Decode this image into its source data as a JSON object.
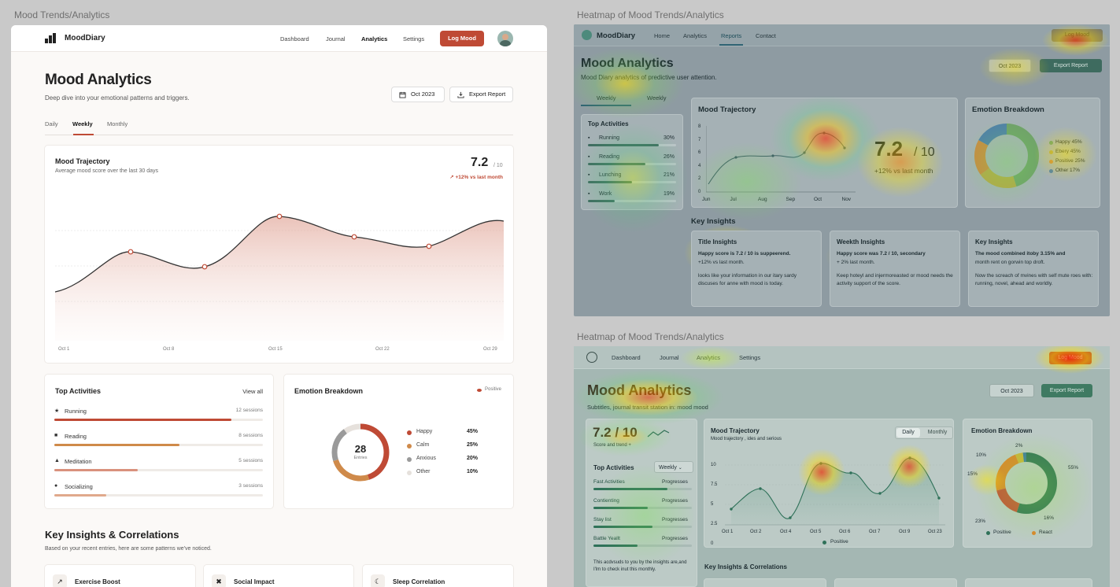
{
  "captions": {
    "left": "Mood Trends/Analytics",
    "right_top": "Heatmap of Mood Trends/Analytics",
    "right_bottom": "Heatmap of Mood Trends/Analytics"
  },
  "main": {
    "brand": "MoodDiary",
    "nav": [
      "Dashboard",
      "Journal",
      "Analytics",
      "Settings"
    ],
    "log_button": "Log Mood",
    "title": "Mood Analytics",
    "subtitle": "Deep dive into your emotional patterns and triggers.",
    "date_button": "Oct 2023",
    "export_button": "Export Report",
    "tabs": [
      "Daily",
      "Weekly",
      "Monthly"
    ],
    "trajectory": {
      "title": "Mood Trajectory",
      "subtitle": "Average mood score over the last 30 days",
      "score": "7.2",
      "score_of": "/ 10",
      "change": "↗ +12% vs last month",
      "x_labels": [
        "Oct 1",
        "Oct 8",
        "Oct 15",
        "Oct 22",
        "Oct 29"
      ]
    },
    "activities": {
      "title": "Top Activities",
      "view_all": "View all",
      "items": [
        {
          "icon": "running-icon",
          "glyph": "★",
          "name": "Running",
          "sessions": "12 sessions",
          "fill": 0.85,
          "color": "#bf4a35"
        },
        {
          "icon": "book-icon",
          "glyph": "■",
          "name": "Reading",
          "sessions": "8 sessions",
          "fill": 0.6,
          "color": "#cf8a4a"
        },
        {
          "icon": "meditation-icon",
          "glyph": "▲",
          "name": "Meditation",
          "sessions": "5 sessions",
          "fill": 0.4,
          "color": "#d9917d"
        },
        {
          "icon": "people-icon",
          "glyph": "●",
          "name": "Socializing",
          "sessions": "3 sessions",
          "fill": 0.25,
          "color": "#e0a98c"
        }
      ]
    },
    "emotions": {
      "title": "Emotion Breakdown",
      "legend_tag": "Positive",
      "center_value": "28",
      "center_label": "Entries",
      "items": [
        {
          "name": "Happy",
          "value": "45%",
          "color": "#bf4a35"
        },
        {
          "name": "Calm",
          "value": "25%",
          "color": "#cf8a4a"
        },
        {
          "name": "Anxious",
          "value": "20%",
          "color": "#9a9a9a"
        },
        {
          "name": "Other",
          "value": "10%",
          "color": "#e6e1dc"
        }
      ]
    },
    "insights": {
      "title": "Key Insights & Correlations",
      "subtitle": "Based on your recent entries, here are some patterns we've noticed.",
      "cards": [
        {
          "icon": "↗",
          "title": "Exercise Boost"
        },
        {
          "icon": "✖",
          "title": "Social Impact"
        },
        {
          "icon": "☾",
          "title": "Sleep Correlation"
        }
      ]
    }
  },
  "heat1": {
    "brand": "MoodDiary",
    "nav": [
      "Home",
      "Analytics",
      "Reports",
      "Contact"
    ],
    "log_button": "Log Mood",
    "title": "Mood Analytics",
    "subtitle": "Mood Diary analytics of predictive user attention.",
    "date_button": "Oct 2023",
    "export_button": "Export Report",
    "tabs": [
      "Weekly",
      "Weekly"
    ],
    "activities_title": "Top Activities",
    "activities": [
      {
        "name": "Running",
        "pct": "30%",
        "fill": 0.8
      },
      {
        "name": "Reading",
        "pct": "26%",
        "fill": 0.65
      },
      {
        "name": "Lunching",
        "pct": "21%",
        "fill": 0.5
      },
      {
        "name": "Work",
        "pct": "19%",
        "fill": 0.3
      }
    ],
    "trajectory_title": "Mood Trajectory",
    "y_labels": [
      "8",
      "7",
      "6",
      "4",
      "2",
      "0"
    ],
    "x_labels": [
      "Jun",
      "Jul",
      "Aug",
      "Sep",
      "Oct",
      "Nov"
    ],
    "score": "7.2",
    "score_of": "/ 10",
    "score_change": "+12% vs last month",
    "emotion_title": "Emotion Breakdown",
    "emotion_legend": [
      "Happy 45%",
      "Ebery 45%",
      "Positive 25%",
      "Other 17%"
    ],
    "insights_title": "Key Insights",
    "insight_cards": [
      {
        "title": "Title Insights",
        "line1": "Happy score is 7.2 / 10 is suppeerend.",
        "line2": "+12% vs last month.",
        "body": "looks like your information in our itary sardy discuses for anne with mood is today."
      },
      {
        "title": "Weekth Insights",
        "line1": "Happy score was 7.2 / 10, secondary",
        "line2": "+ 2% last month.",
        "body": "Keep hoteyl and injermoreasted or mood needs the activity support of the score."
      },
      {
        "title": "Key Insights",
        "line1": "The mood combined itoby 3.15% and",
        "line2": "month rent on gorwin top droft.",
        "body": "Now the screach of mvines with self mute roes with: running, novel, ahead and worldly."
      }
    ]
  },
  "heat2": {
    "nav": [
      "Dashboard",
      "Journal",
      "Analytics",
      "Settings"
    ],
    "log_button": "Log Mood",
    "title": "Mood Analytics",
    "subtitle": "Subtitles, journal transit station in: mood mood",
    "date_button": "Oct 2023",
    "export_button": "Export Report",
    "score": "7.2 / 10",
    "score_sub": "Score and trend +",
    "activities_title": "Top Activities",
    "activities_select": "Weekly",
    "activities": [
      {
        "name": "Fast Activities",
        "status": "Progresses",
        "fill": 0.75
      },
      {
        "name": "Contienting",
        "status": "Progresses",
        "fill": 0.55
      },
      {
        "name": "Stay list",
        "status": "Progresses",
        "fill": 0.6
      },
      {
        "name": "Battle Yeallt",
        "status": "Progresses",
        "fill": 0.45
      }
    ],
    "activities_note": "This acdvsuds to you by the insights are,and I'lm to check inut this monthly.",
    "trajectory_title": "Mood Trajectory",
    "trajectory_sub": "Mood trajectory , ides and serious",
    "toggle": [
      "Daily",
      "Monthly"
    ],
    "y_labels": [
      "10",
      "7.5",
      "5",
      "2.5",
      "0"
    ],
    "x_labels": [
      "Oct 1",
      "Oct 2",
      "Oct 4",
      "Oct 5",
      "Oct 6",
      "Oct 7",
      "Oct 9",
      "Oct 23"
    ],
    "trajectory_legend": "Positive",
    "emotion_title": "Emotion Breakdown",
    "donut_labels": [
      "2%",
      "10%",
      "15%",
      "55%",
      "23%",
      "16%"
    ],
    "emotion_legend": [
      "Positive",
      "React"
    ],
    "insights_title": "Key Insights & Correlations"
  }
}
